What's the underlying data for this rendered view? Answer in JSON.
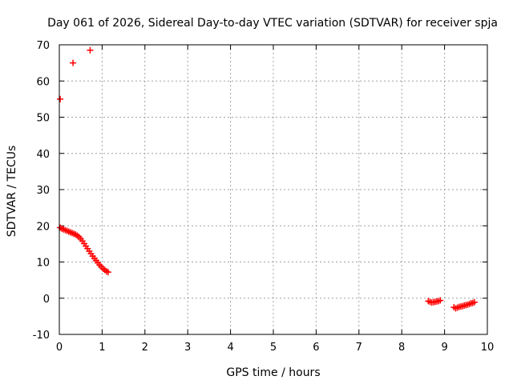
{
  "chart_data": {
    "type": "scatter",
    "title": "Day 061 of 2026, Sidereal Day-to-day VTEC variation (SDTVAR) for receiver spja",
    "xlabel": "GPS time / hours",
    "ylabel": "SDTVAR / TECUs",
    "xlim": [
      0,
      10
    ],
    "ylim": [
      -10,
      70
    ],
    "xticks": [
      "0",
      "1",
      "2",
      "3",
      "4",
      "5",
      "6",
      "7",
      "8",
      "9",
      "10"
    ],
    "yticks": [
      "-10",
      "0",
      "10",
      "20",
      "30",
      "40",
      "50",
      "60",
      "70"
    ],
    "grid": true,
    "marker": "plus",
    "series": [
      {
        "color": "#ff0000",
        "points": [
          [
            0.02,
            55.0
          ],
          [
            0.32,
            65.0
          ],
          [
            0.72,
            68.5
          ],
          [
            0.02,
            19.5
          ],
          [
            0.06,
            19.2
          ],
          [
            0.1,
            19.0
          ],
          [
            0.14,
            18.8
          ],
          [
            0.18,
            18.6
          ],
          [
            0.22,
            18.4
          ],
          [
            0.26,
            18.2
          ],
          [
            0.3,
            18.0
          ],
          [
            0.34,
            17.8
          ],
          [
            0.38,
            17.6
          ],
          [
            0.42,
            17.3
          ],
          [
            0.46,
            16.9
          ],
          [
            0.5,
            16.4
          ],
          [
            0.54,
            15.8
          ],
          [
            0.58,
            15.1
          ],
          [
            0.62,
            14.4
          ],
          [
            0.66,
            13.7
          ],
          [
            0.7,
            13.0
          ],
          [
            0.74,
            12.3
          ],
          [
            0.78,
            11.6
          ],
          [
            0.82,
            11.0
          ],
          [
            0.86,
            10.4
          ],
          [
            0.9,
            9.8
          ],
          [
            0.94,
            9.2
          ],
          [
            0.98,
            8.7
          ],
          [
            1.02,
            8.2
          ],
          [
            1.06,
            7.8
          ],
          [
            1.1,
            7.4
          ],
          [
            1.14,
            7.2
          ],
          [
            8.62,
            -0.8
          ],
          [
            8.66,
            -1.0
          ],
          [
            8.7,
            -1.2
          ],
          [
            8.74,
            -1.1
          ],
          [
            8.78,
            -1.0
          ],
          [
            8.82,
            -0.9
          ],
          [
            8.86,
            -0.8
          ],
          [
            8.9,
            -0.6
          ],
          [
            9.22,
            -2.5
          ],
          [
            9.26,
            -2.8
          ],
          [
            9.3,
            -2.6
          ],
          [
            9.34,
            -2.4
          ],
          [
            9.38,
            -2.3
          ],
          [
            9.42,
            -2.2
          ],
          [
            9.46,
            -2.0
          ],
          [
            9.5,
            -1.9
          ],
          [
            9.54,
            -1.8
          ],
          [
            9.58,
            -1.6
          ],
          [
            9.62,
            -1.4
          ],
          [
            9.66,
            -1.3
          ],
          [
            9.7,
            -1.1
          ]
        ]
      }
    ]
  }
}
